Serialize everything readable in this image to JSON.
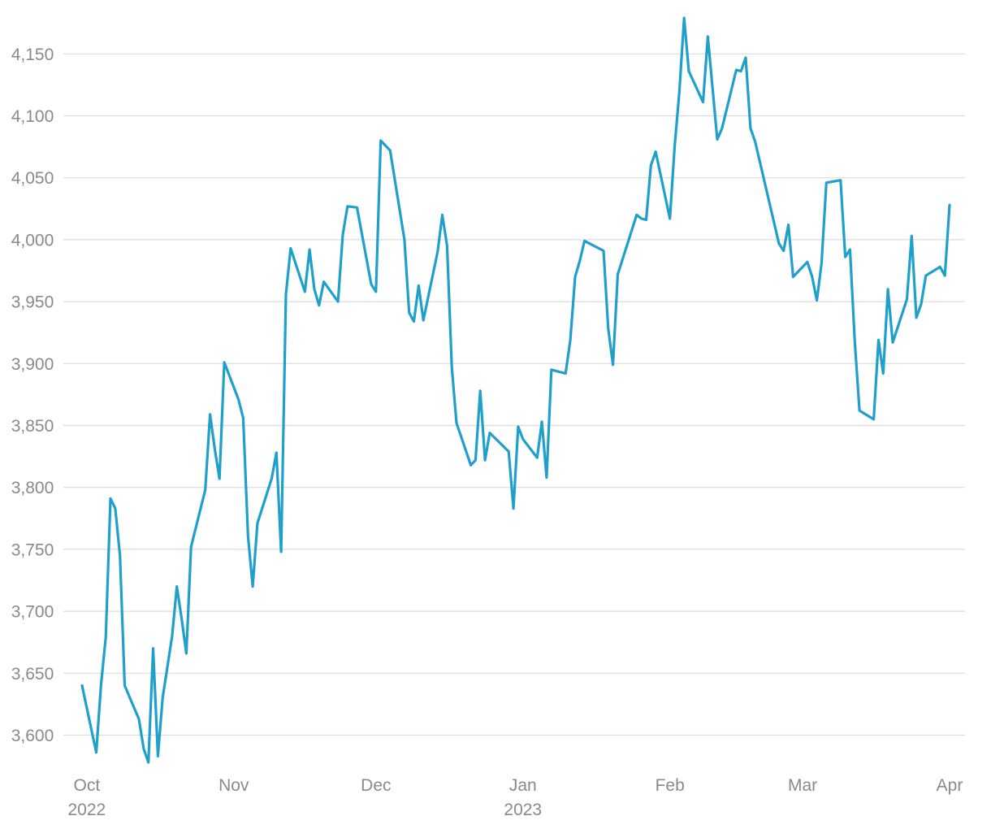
{
  "chart_data": {
    "type": "line",
    "title": "",
    "xlabel": "",
    "ylabel": "",
    "grid": true,
    "x_range": [
      "2022-09-30",
      "2023-04-01"
    ],
    "ylim": [
      3580,
      4180
    ],
    "y_ticks": [
      {
        "value": 3600,
        "label": "3,600"
      },
      {
        "value": 3650,
        "label": "3,650"
      },
      {
        "value": 3700,
        "label": "3,700"
      },
      {
        "value": 3750,
        "label": "3,750"
      },
      {
        "value": 3800,
        "label": "3,800"
      },
      {
        "value": 3850,
        "label": "3,850"
      },
      {
        "value": 3900,
        "label": "3,900"
      },
      {
        "value": 3950,
        "label": "3,950"
      },
      {
        "value": 4000,
        "label": "4,000"
      },
      {
        "value": 4050,
        "label": "4,050"
      },
      {
        "value": 4100,
        "label": "4,100"
      },
      {
        "value": 4150,
        "label": "4,150"
      }
    ],
    "x_ticks": [
      {
        "date": "2022-10-01",
        "label": "Oct",
        "sublabel": "2022"
      },
      {
        "date": "2022-11-01",
        "label": "Nov",
        "sublabel": ""
      },
      {
        "date": "2022-12-01",
        "label": "Dec",
        "sublabel": ""
      },
      {
        "date": "2023-01-01",
        "label": "Jan",
        "sublabel": "2023"
      },
      {
        "date": "2023-02-01",
        "label": "Feb",
        "sublabel": ""
      },
      {
        "date": "2023-03-01",
        "label": "Mar",
        "sublabel": ""
      },
      {
        "date": "2023-04-01",
        "label": "Apr",
        "sublabel": ""
      }
    ],
    "series": [
      {
        "color": "#1fa0cb",
        "points": [
          [
            "2022-09-30",
            3640
          ],
          [
            "2022-10-03",
            3586
          ],
          [
            "2022-10-04",
            3640
          ],
          [
            "2022-10-05",
            3679
          ],
          [
            "2022-10-06",
            3791
          ],
          [
            "2022-10-07",
            3783
          ],
          [
            "2022-10-08",
            3745
          ],
          [
            "2022-10-09",
            3640
          ],
          [
            "2022-10-12",
            3613
          ],
          [
            "2022-10-13",
            3589
          ],
          [
            "2022-10-14",
            3578
          ],
          [
            "2022-10-15",
            3670
          ],
          [
            "2022-10-16",
            3583
          ],
          [
            "2022-10-17",
            3630
          ],
          [
            "2022-10-19",
            3680
          ],
          [
            "2022-10-20",
            3720
          ],
          [
            "2022-10-21",
            3694
          ],
          [
            "2022-10-22",
            3666
          ],
          [
            "2022-10-23",
            3752
          ],
          [
            "2022-10-26",
            3798
          ],
          [
            "2022-10-27",
            3859
          ],
          [
            "2022-10-28",
            3831
          ],
          [
            "2022-10-29",
            3807
          ],
          [
            "2022-10-30",
            3901
          ],
          [
            "2022-11-02",
            3871
          ],
          [
            "2022-11-03",
            3856
          ],
          [
            "2022-11-04",
            3761
          ],
          [
            "2022-11-05",
            3720
          ],
          [
            "2022-11-06",
            3771
          ],
          [
            "2022-11-09",
            3807
          ],
          [
            "2022-11-10",
            3828
          ],
          [
            "2022-11-11",
            3748
          ],
          [
            "2022-11-12",
            3956
          ],
          [
            "2022-11-13",
            3993
          ],
          [
            "2022-11-16",
            3958
          ],
          [
            "2022-11-17",
            3992
          ],
          [
            "2022-11-18",
            3960
          ],
          [
            "2022-11-19",
            3947
          ],
          [
            "2022-11-20",
            3966
          ],
          [
            "2022-11-23",
            3950
          ],
          [
            "2022-11-24",
            4004
          ],
          [
            "2022-11-25",
            4027
          ],
          [
            "2022-11-27",
            4026
          ],
          [
            "2022-11-30",
            3964
          ],
          [
            "2022-12-01",
            3958
          ],
          [
            "2022-12-02",
            4080
          ],
          [
            "2022-12-04",
            4072
          ],
          [
            "2022-12-07",
            4000
          ],
          [
            "2022-12-08",
            3941
          ],
          [
            "2022-12-09",
            3934
          ],
          [
            "2022-12-10",
            3963
          ],
          [
            "2022-12-11",
            3935
          ],
          [
            "2022-12-14",
            3990
          ],
          [
            "2022-12-15",
            4020
          ],
          [
            "2022-12-16",
            3995
          ],
          [
            "2022-12-17",
            3897
          ],
          [
            "2022-12-18",
            3852
          ],
          [
            "2022-12-21",
            3818
          ],
          [
            "2022-12-22",
            3822
          ],
          [
            "2022-12-23",
            3878
          ],
          [
            "2022-12-24",
            3822
          ],
          [
            "2022-12-25",
            3844
          ],
          [
            "2022-12-29",
            3829
          ],
          [
            "2022-12-30",
            3783
          ],
          [
            "2022-12-31",
            3849
          ],
          [
            "2023-01-01",
            3839
          ],
          [
            "2023-01-03",
            3829
          ],
          [
            "2023-01-04",
            3824
          ],
          [
            "2023-01-05",
            3853
          ],
          [
            "2023-01-06",
            3808
          ],
          [
            "2023-01-07",
            3895
          ],
          [
            "2023-01-10",
            3892
          ],
          [
            "2023-01-11",
            3919
          ],
          [
            "2023-01-12",
            3970
          ],
          [
            "2023-01-13",
            3983
          ],
          [
            "2023-01-14",
            3999
          ],
          [
            "2023-01-18",
            3991
          ],
          [
            "2023-01-19",
            3928
          ],
          [
            "2023-01-20",
            3899
          ],
          [
            "2023-01-21",
            3972
          ],
          [
            "2023-01-25",
            4020
          ],
          [
            "2023-01-26",
            4017
          ],
          [
            "2023-01-27",
            4016
          ],
          [
            "2023-01-28",
            4060
          ],
          [
            "2023-01-29",
            4071
          ],
          [
            "2023-02-01",
            4017
          ],
          [
            "2023-02-02",
            4075
          ],
          [
            "2023-02-03",
            4119
          ],
          [
            "2023-02-04",
            4179
          ],
          [
            "2023-02-05",
            4136
          ],
          [
            "2023-02-08",
            4111
          ],
          [
            "2023-02-09",
            4164
          ],
          [
            "2023-02-11",
            4081
          ],
          [
            "2023-02-12",
            4090
          ],
          [
            "2023-02-15",
            4137
          ],
          [
            "2023-02-16",
            4136
          ],
          [
            "2023-02-17",
            4147
          ],
          [
            "2023-02-18",
            4090
          ],
          [
            "2023-02-19",
            4079
          ],
          [
            "2023-02-24",
            3997
          ],
          [
            "2023-02-25",
            3991
          ],
          [
            "2023-02-26",
            4012
          ],
          [
            "2023-02-27",
            3970
          ],
          [
            "2023-03-02",
            3982
          ],
          [
            "2023-03-03",
            3970
          ],
          [
            "2023-03-04",
            3951
          ],
          [
            "2023-03-05",
            3981
          ],
          [
            "2023-03-06",
            4046
          ],
          [
            "2023-03-09",
            4048
          ],
          [
            "2023-03-10",
            3986
          ],
          [
            "2023-03-11",
            3992
          ],
          [
            "2023-03-12",
            3918
          ],
          [
            "2023-03-13",
            3862
          ],
          [
            "2023-03-16",
            3855
          ],
          [
            "2023-03-17",
            3919
          ],
          [
            "2023-03-18",
            3892
          ],
          [
            "2023-03-19",
            3960
          ],
          [
            "2023-03-20",
            3917
          ],
          [
            "2023-03-23",
            3952
          ],
          [
            "2023-03-24",
            4003
          ],
          [
            "2023-03-25",
            3937
          ],
          [
            "2023-03-26",
            3948
          ],
          [
            "2023-03-27",
            3971
          ],
          [
            "2023-03-30",
            3978
          ],
          [
            "2023-03-31",
            3971
          ],
          [
            "2023-04-01",
            4028
          ]
        ]
      }
    ]
  }
}
